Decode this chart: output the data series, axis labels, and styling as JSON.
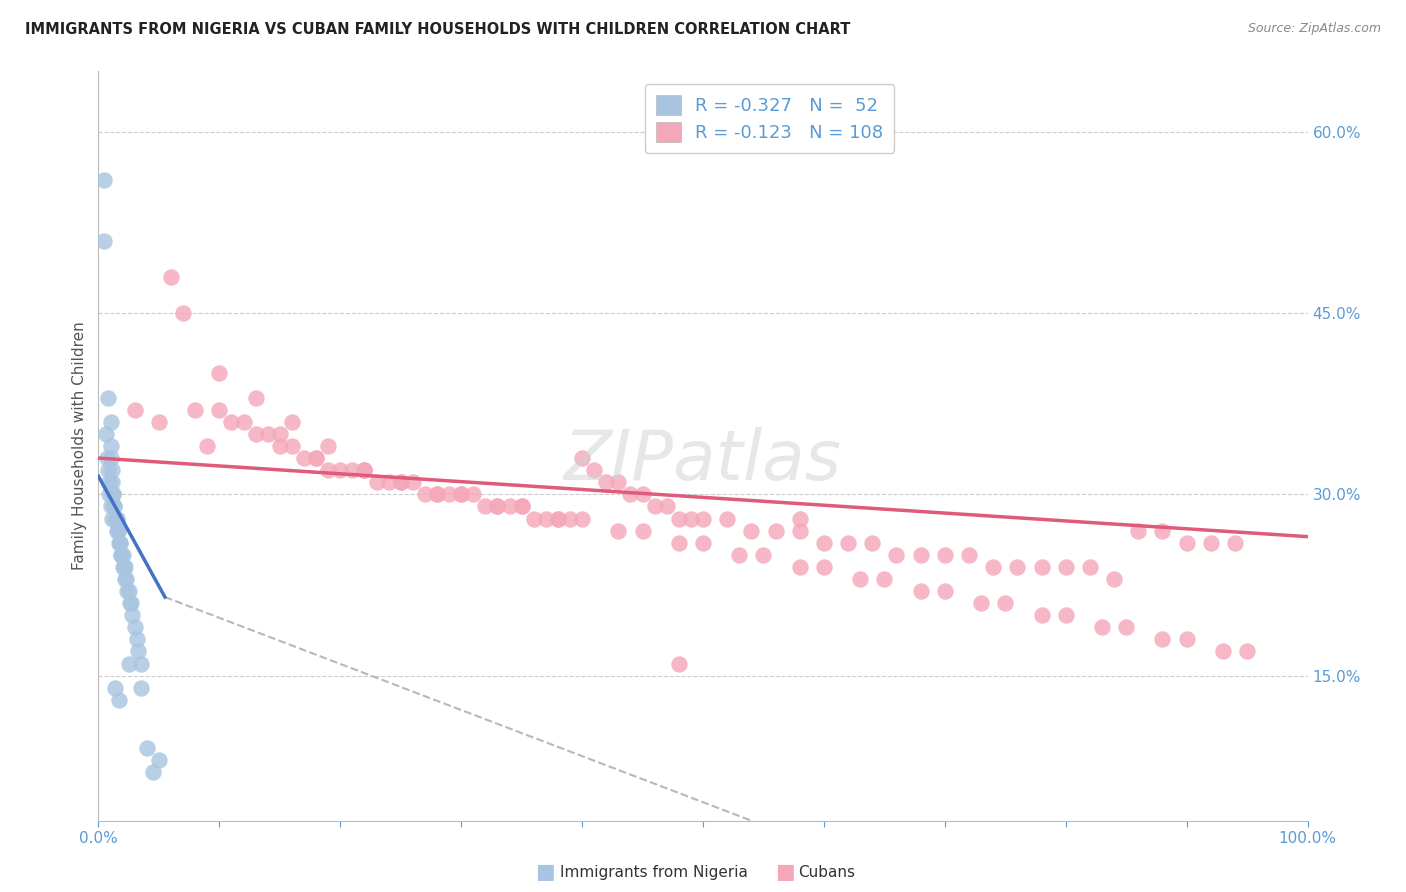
{
  "title": "IMMIGRANTS FROM NIGERIA VS CUBAN FAMILY HOUSEHOLDS WITH CHILDREN CORRELATION CHART",
  "source": "Source: ZipAtlas.com",
  "ylabel": "Family Households with Children",
  "legend_label1": "Immigrants from Nigeria",
  "legend_label2": "Cubans",
  "r1": -0.327,
  "n1": 52,
  "r2": -0.123,
  "n2": 108,
  "color1": "#a8c4e0",
  "color2": "#f4a7b9",
  "line_color1": "#4472c4",
  "line_color2": "#e05a7a",
  "axis_color": "#5b9bd5",
  "xlim": [
    0.0,
    1.0
  ],
  "ylim": [
    0.03,
    0.65
  ],
  "nigeria_x": [
    0.005,
    0.005,
    0.008,
    0.01,
    0.01,
    0.01,
    0.011,
    0.011,
    0.012,
    0.012,
    0.013,
    0.013,
    0.014,
    0.015,
    0.015,
    0.015,
    0.016,
    0.016,
    0.017,
    0.018,
    0.018,
    0.019,
    0.019,
    0.02,
    0.02,
    0.021,
    0.022,
    0.022,
    0.023,
    0.024,
    0.025,
    0.026,
    0.027,
    0.028,
    0.03,
    0.032,
    0.033,
    0.035,
    0.006,
    0.007,
    0.008,
    0.009,
    0.009,
    0.01,
    0.011,
    0.014,
    0.017,
    0.025,
    0.035,
    0.04,
    0.045,
    0.05
  ],
  "nigeria_y": [
    0.56,
    0.51,
    0.38,
    0.36,
    0.34,
    0.33,
    0.32,
    0.31,
    0.3,
    0.3,
    0.29,
    0.29,
    0.28,
    0.28,
    0.28,
    0.27,
    0.27,
    0.27,
    0.26,
    0.26,
    0.26,
    0.25,
    0.25,
    0.25,
    0.24,
    0.24,
    0.24,
    0.23,
    0.23,
    0.22,
    0.22,
    0.21,
    0.21,
    0.2,
    0.19,
    0.18,
    0.17,
    0.16,
    0.35,
    0.33,
    0.32,
    0.31,
    0.3,
    0.29,
    0.28,
    0.14,
    0.13,
    0.16,
    0.14,
    0.09,
    0.07,
    0.08
  ],
  "cuban_x": [
    0.03,
    0.05,
    0.06,
    0.07,
    0.08,
    0.09,
    0.1,
    0.11,
    0.12,
    0.13,
    0.14,
    0.15,
    0.16,
    0.17,
    0.18,
    0.19,
    0.2,
    0.21,
    0.22,
    0.23,
    0.24,
    0.25,
    0.26,
    0.27,
    0.28,
    0.29,
    0.3,
    0.31,
    0.32,
    0.33,
    0.34,
    0.35,
    0.36,
    0.37,
    0.38,
    0.39,
    0.4,
    0.41,
    0.42,
    0.43,
    0.44,
    0.45,
    0.46,
    0.47,
    0.48,
    0.49,
    0.5,
    0.52,
    0.54,
    0.56,
    0.58,
    0.6,
    0.62,
    0.64,
    0.66,
    0.68,
    0.7,
    0.72,
    0.74,
    0.76,
    0.78,
    0.8,
    0.82,
    0.84,
    0.86,
    0.88,
    0.9,
    0.92,
    0.94,
    0.15,
    0.18,
    0.22,
    0.25,
    0.28,
    0.3,
    0.33,
    0.35,
    0.38,
    0.4,
    0.43,
    0.45,
    0.48,
    0.5,
    0.53,
    0.55,
    0.58,
    0.6,
    0.63,
    0.65,
    0.68,
    0.7,
    0.73,
    0.75,
    0.78,
    0.8,
    0.83,
    0.85,
    0.88,
    0.9,
    0.93,
    0.95,
    0.58,
    0.48,
    0.1,
    0.13,
    0.16,
    0.19,
    0.22
  ],
  "cuban_y": [
    0.37,
    0.36,
    0.48,
    0.45,
    0.37,
    0.34,
    0.37,
    0.36,
    0.36,
    0.35,
    0.35,
    0.34,
    0.34,
    0.33,
    0.33,
    0.32,
    0.32,
    0.32,
    0.32,
    0.31,
    0.31,
    0.31,
    0.31,
    0.3,
    0.3,
    0.3,
    0.3,
    0.3,
    0.29,
    0.29,
    0.29,
    0.29,
    0.28,
    0.28,
    0.28,
    0.28,
    0.33,
    0.32,
    0.31,
    0.31,
    0.3,
    0.3,
    0.29,
    0.29,
    0.28,
    0.28,
    0.28,
    0.28,
    0.27,
    0.27,
    0.27,
    0.26,
    0.26,
    0.26,
    0.25,
    0.25,
    0.25,
    0.25,
    0.24,
    0.24,
    0.24,
    0.24,
    0.24,
    0.23,
    0.27,
    0.27,
    0.26,
    0.26,
    0.26,
    0.35,
    0.33,
    0.32,
    0.31,
    0.3,
    0.3,
    0.29,
    0.29,
    0.28,
    0.28,
    0.27,
    0.27,
    0.26,
    0.26,
    0.25,
    0.25,
    0.24,
    0.24,
    0.23,
    0.23,
    0.22,
    0.22,
    0.21,
    0.21,
    0.2,
    0.2,
    0.19,
    0.19,
    0.18,
    0.18,
    0.17,
    0.17,
    0.28,
    0.16,
    0.4,
    0.38,
    0.36,
    0.34,
    0.32
  ]
}
